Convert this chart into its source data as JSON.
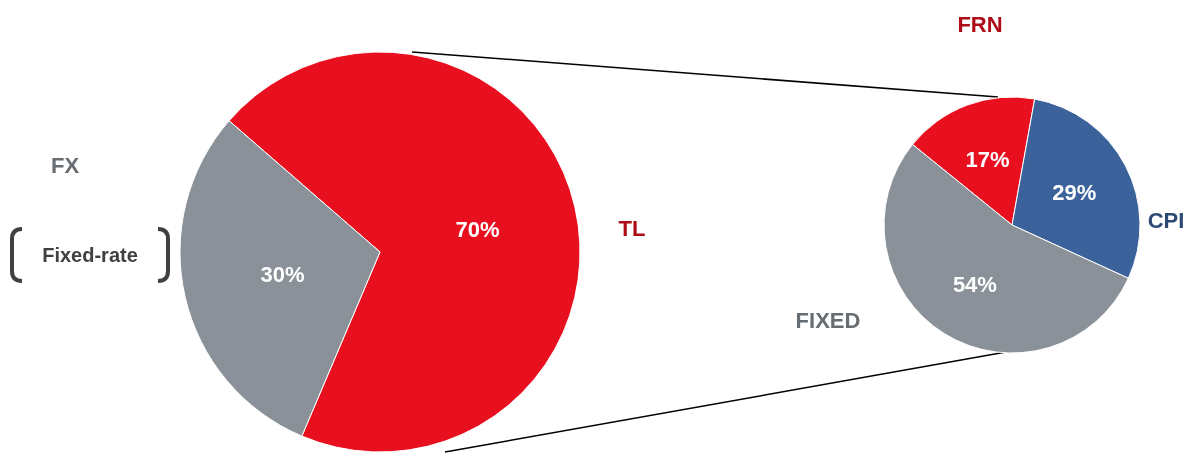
{
  "chart_data": [
    {
      "type": "pie",
      "categories": [
        "TL",
        "FX"
      ],
      "values": [
        70,
        30
      ],
      "colors": [
        "#e8101f",
        "#8a9198"
      ],
      "value_labels": [
        "70%",
        "30%"
      ],
      "annotations": [
        "Fixed-rate"
      ]
    },
    {
      "type": "pie",
      "categories": [
        "FRN",
        "CPI",
        "FIXED"
      ],
      "values": [
        17,
        29,
        54
      ],
      "colors": [
        "#e8101f",
        "#3b629a",
        "#8a9198"
      ],
      "value_labels": [
        "17%",
        "29%",
        "54%"
      ]
    }
  ]
}
